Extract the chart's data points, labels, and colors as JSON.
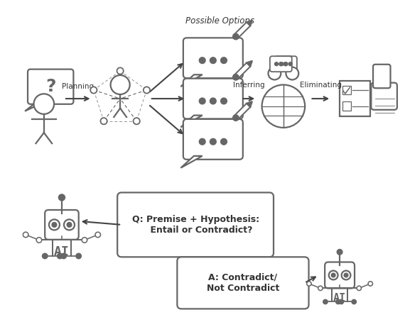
{
  "bg_color": "#ffffff",
  "ic": "#666666",
  "ac": "#444444",
  "tc": "#333333",
  "lw": 1.6,
  "figsize": [
    5.7,
    4.54
  ],
  "dpi": 100,
  "planning_label": "Planning",
  "inferring_label": "Inferring",
  "eliminating_label": "Eliminating",
  "possible_options_label": "Possible Options",
  "q_text": "Q: Premise + Hypothesis:\n    Entail or Contradict?",
  "a_text": "A: Contradict/\nNot Contradict"
}
